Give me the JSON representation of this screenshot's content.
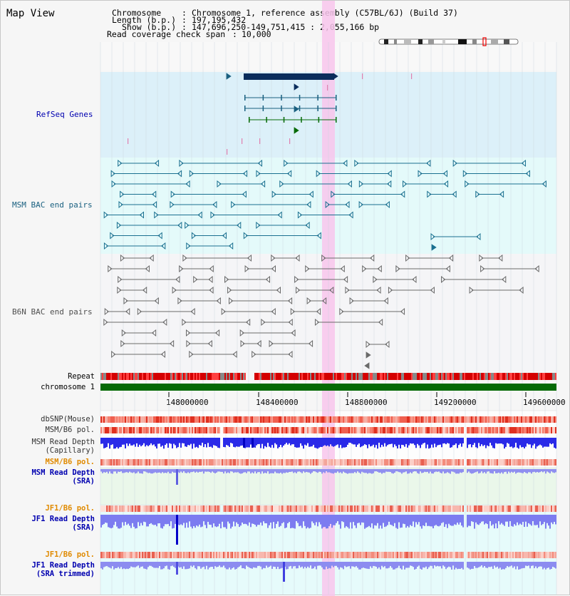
{
  "window": {
    "title": "Map View"
  },
  "info": {
    "chromosome_label": "Chromosome",
    "chromosome_value": "Chromosome 1, reference assembly (C57BL/6J) (Build 37)",
    "length_label": "Length (b.p.)",
    "length_value": "197,195,432",
    "show_label": "Show (b.p.)",
    "show_value": "147,696,250-149,751,415 : 2,055,166 bp",
    "coverage_label": "Read coverage check span",
    "coverage_value": "10,000"
  },
  "tracks": {
    "refseq": "RefSeq Genes",
    "msm_bac": "MSM BAC end pairs",
    "b6n_bac": "B6N BAC end pairs",
    "repeat": "Repeat",
    "chromosome": "chromosome 1",
    "dbsnp": "dbSNP(Mouse)",
    "msm_b6_pol_1": "MSM/B6 pol.",
    "msm_depth_cap_1": "MSM Read Depth",
    "msm_depth_cap_2": "(Capillary)",
    "msm_b6_pol_2": "MSM/B6 pol.",
    "msm_depth_sra_1": "MSM Read Depth",
    "msm_depth_sra_2": "(SRA)",
    "jf1_b6_pol_1": "JF1/B6 pol.",
    "jf1_depth_sra_1": "JF1 Read Depth",
    "jf1_depth_sra_2": "(SRA)",
    "jf1_b6_pol_2": "JF1/B6 pol.",
    "jf1_depth_trim_1": "JF1 Read Depth",
    "jf1_depth_trim_2": "(SRA trimmed)"
  },
  "axis_ticks": [
    "148000000",
    "148400000",
    "148800000",
    "149200000",
    "149600000"
  ],
  "colors": {
    "refseq_bg": "#dff2fa",
    "bac_bg": "#e4fafa",
    "highlight": "#f8c6ec",
    "gene_dark": "#0b2d5c",
    "chrom_green": "#056a05",
    "label_blue": "#0000b0",
    "label_orange": "#e08a00",
    "label_teal": "#1a6080"
  }
}
